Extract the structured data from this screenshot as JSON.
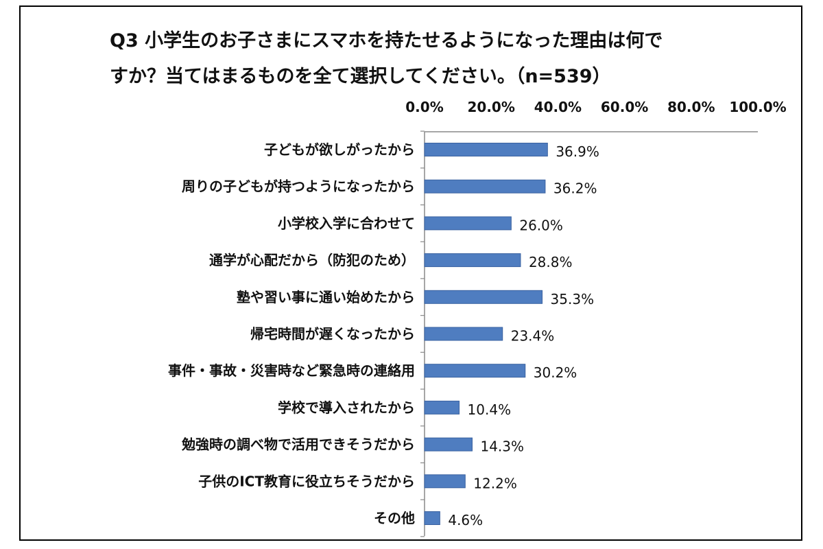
{
  "chart_data": {
    "type": "bar",
    "orientation": "horizontal",
    "title_lines": [
      "Q3 小学生のお子さまにスマホを持たせるようになった理由は何で",
      "すか？当てはまるものを全て選択してください。（n=539）"
    ],
    "categories": [
      "子どもが欲しがったから",
      "周りの子どもが持つようになったから",
      "小学校入学に合わせて",
      "通学が心配だから（防犯のため）",
      "塾や習い事に通い始めたから",
      "帰宅時間が遅くなったから",
      "事件・事故・災害時など緊急時の連絡用",
      "学校で導入されたから",
      "勉強時の調べ物で活用できそうだから",
      "子供のICT教育に役立ちそうだから",
      "その他"
    ],
    "values": [
      36.9,
      36.2,
      26.0,
      28.8,
      35.3,
      23.4,
      30.2,
      10.4,
      14.3,
      12.2,
      4.6
    ],
    "value_labels": [
      "36.9%",
      "36.2%",
      "26.0%",
      "28.8%",
      "35.3%",
      "23.4%",
      "30.2%",
      "10.4%",
      "14.3%",
      "12.2%",
      "4.6%"
    ],
    "xlim": [
      0,
      100
    ],
    "ticks": [
      "0.0%",
      "20.0%",
      "40.0%",
      "60.0%",
      "80.0%",
      "100.0%"
    ],
    "tick_values": [
      0,
      20,
      40,
      60,
      80,
      100
    ],
    "axis_position": "top",
    "grid": false,
    "legend": "none",
    "bar_color": "#4F7DC0",
    "bar_edge_color": "#3A62A0"
  }
}
